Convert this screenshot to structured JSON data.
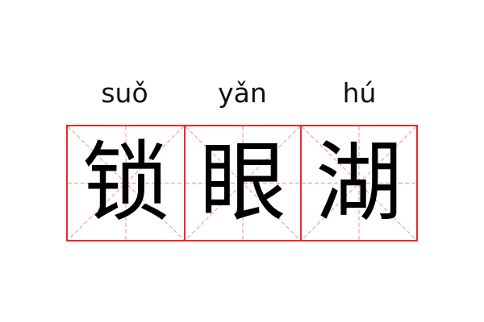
{
  "word": [
    {
      "pinyin": "suǒ",
      "hanzi": "锁"
    },
    {
      "pinyin": "yǎn",
      "hanzi": "眼"
    },
    {
      "pinyin": "hú",
      "hanzi": "湖"
    }
  ],
  "colors": {
    "grid_border": "#f0282d",
    "guide_lines": "#f5a0a0",
    "text": "#000000"
  }
}
